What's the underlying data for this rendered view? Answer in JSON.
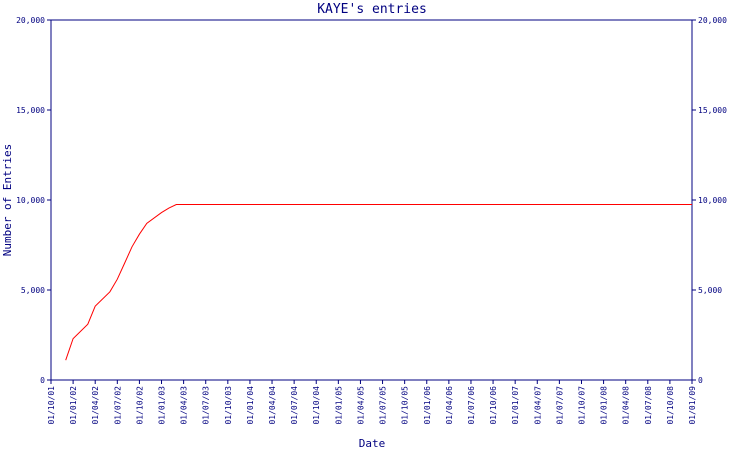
{
  "chart_data": {
    "type": "line",
    "title": "KAYE's entries",
    "xlabel": "Date",
    "ylabel": "Number of Entries",
    "ylim": [
      0,
      20000
    ],
    "y_ticks": [
      0,
      5000,
      10000,
      15000,
      20000
    ],
    "y_tick_labels": [
      "0",
      "5,000",
      "10,000",
      "15,000",
      "20,000"
    ],
    "x_tick_labels": [
      "01/10/01",
      "01/01/02",
      "01/04/02",
      "01/07/02",
      "01/10/02",
      "01/01/03",
      "01/04/03",
      "01/07/03",
      "01/10/03",
      "01/01/04",
      "01/04/04",
      "01/07/04",
      "01/10/04",
      "01/01/05",
      "01/04/05",
      "01/07/05",
      "01/10/05",
      "01/01/06",
      "01/04/06",
      "01/07/06",
      "01/10/06",
      "01/01/07",
      "01/04/07",
      "01/07/07",
      "01/10/07",
      "01/01/08",
      "01/04/08",
      "01/07/08",
      "01/10/08",
      "01/01/09"
    ],
    "grid": false,
    "colors": {
      "axis": "#000080",
      "line": "#ff0000",
      "text": "#000080"
    },
    "series": [
      {
        "points": [
          [
            "01/12/01",
            1100
          ],
          [
            "01/01/02",
            2300
          ],
          [
            "01/03/02",
            3100
          ],
          [
            "01/04/02",
            4100
          ],
          [
            "01/06/02",
            4900
          ],
          [
            "01/07/02",
            5600
          ],
          [
            "01/08/02",
            6500
          ],
          [
            "01/09/02",
            7400
          ],
          [
            "01/10/02",
            8100
          ],
          [
            "01/11/02",
            8700
          ],
          [
            "01/01/03",
            9300
          ],
          [
            "01/02/03",
            9550
          ],
          [
            "01/03/03",
            9750
          ],
          [
            "01/04/03",
            9750
          ],
          [
            "01/01/09",
            9750
          ]
        ]
      }
    ]
  }
}
